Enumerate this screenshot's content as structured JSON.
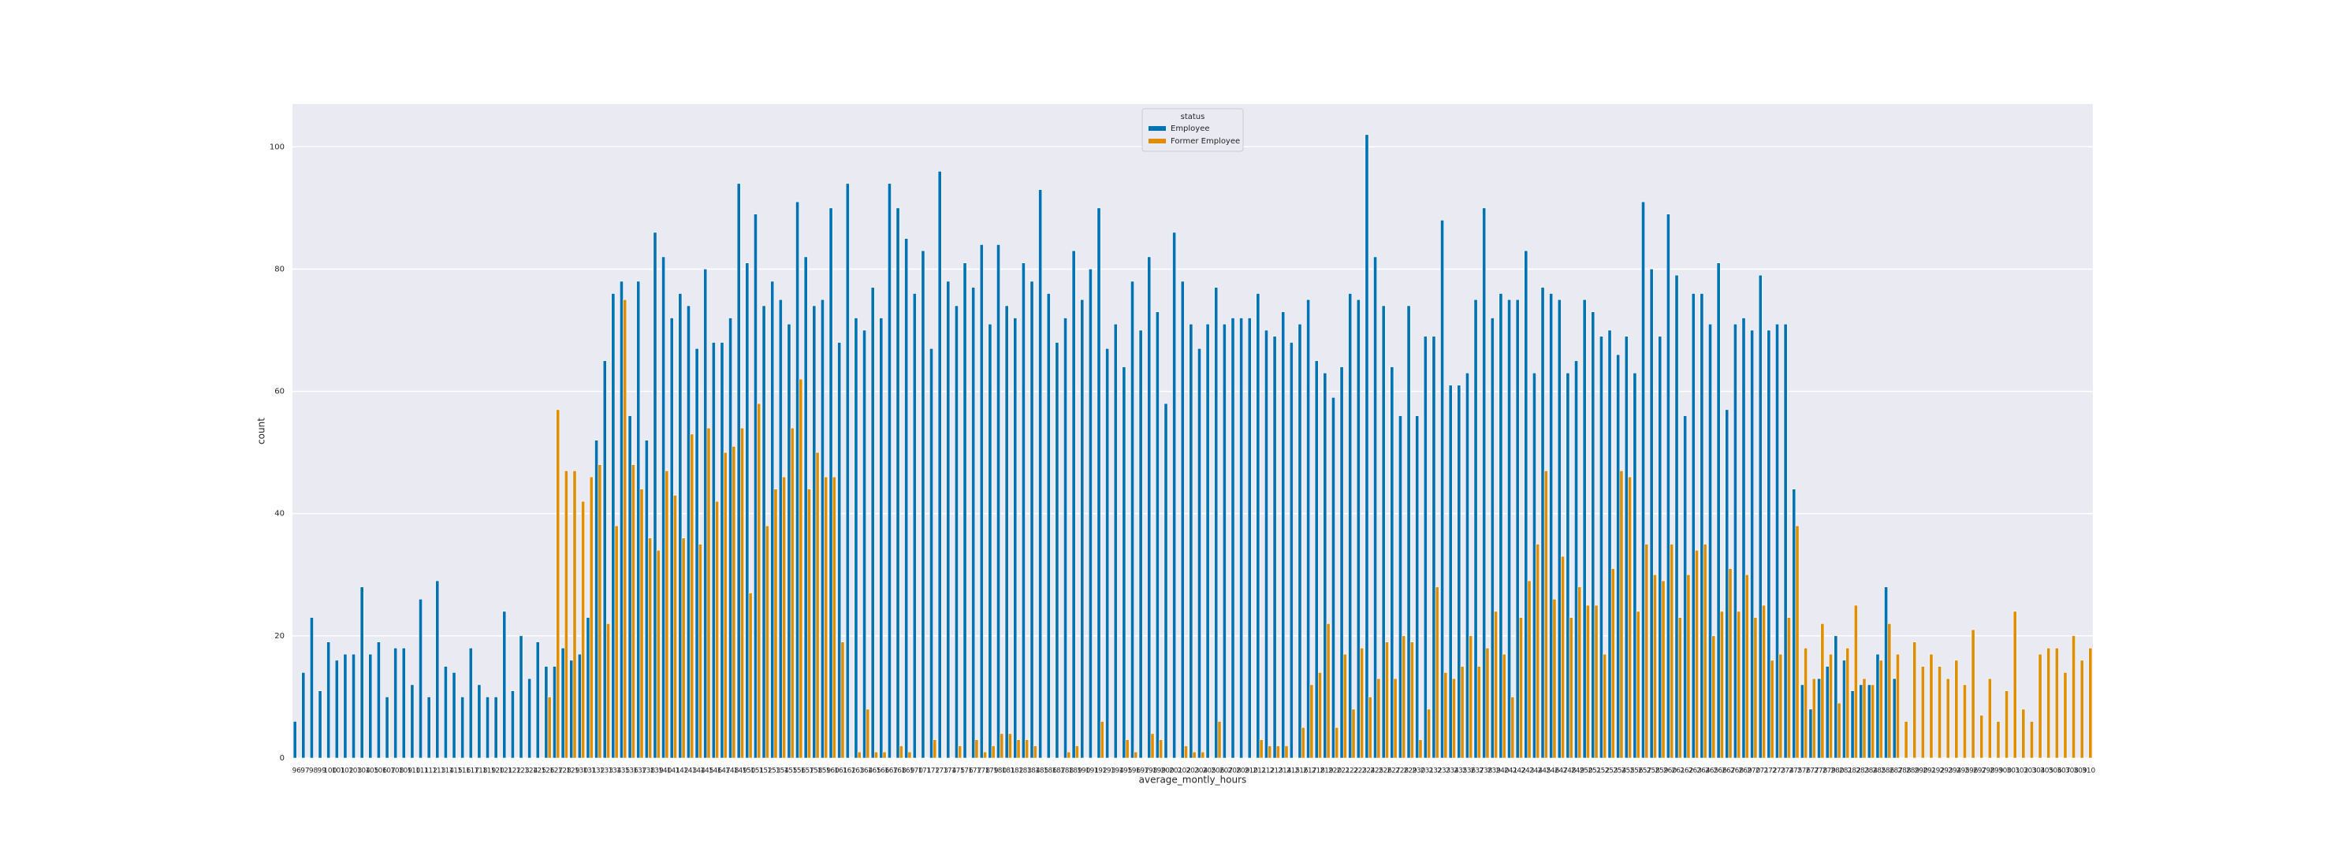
{
  "chart_data": {
    "type": "bar",
    "xlabel": "average_montly_hours",
    "ylabel": "count",
    "legend_title": "status",
    "legend_position": "upper center",
    "grid": true,
    "ylim": [
      0,
      107
    ],
    "yticks": [
      0,
      20,
      40,
      60,
      80,
      100
    ],
    "categories": [
      96,
      97,
      98,
      99,
      100,
      101,
      102,
      103,
      104,
      105,
      106,
      107,
      108,
      109,
      110,
      111,
      112,
      113,
      114,
      115,
      116,
      117,
      118,
      119,
      120,
      121,
      122,
      123,
      124,
      125,
      126,
      127,
      128,
      129,
      130,
      131,
      132,
      133,
      134,
      135,
      136,
      137,
      138,
      139,
      140,
      141,
      142,
      143,
      144,
      145,
      146,
      147,
      148,
      149,
      150,
      151,
      152,
      153,
      154,
      155,
      156,
      157,
      158,
      159,
      160,
      161,
      162,
      163,
      164,
      165,
      166,
      167,
      168,
      169,
      170,
      171,
      172,
      173,
      174,
      175,
      176,
      177,
      178,
      179,
      180,
      181,
      182,
      183,
      184,
      185,
      186,
      187,
      188,
      189,
      190,
      191,
      192,
      193,
      194,
      195,
      196,
      197,
      198,
      199,
      200,
      201,
      202,
      203,
      204,
      205,
      206,
      207,
      208,
      209,
      210,
      211,
      212,
      213,
      214,
      215,
      216,
      217,
      218,
      219,
      220,
      221,
      222,
      223,
      224,
      225,
      226,
      227,
      228,
      229,
      230,
      231,
      232,
      233,
      234,
      235,
      236,
      237,
      238,
      239,
      240,
      241,
      242,
      243,
      244,
      245,
      246,
      247,
      248,
      249,
      250,
      251,
      252,
      253,
      254,
      255,
      256,
      257,
      258,
      259,
      260,
      261,
      262,
      263,
      264,
      265,
      266,
      267,
      268,
      269,
      270,
      271,
      272,
      273,
      274,
      275,
      276,
      277,
      278,
      279,
      280,
      281,
      282,
      283,
      284,
      285,
      286,
      287,
      288,
      289,
      290,
      291,
      292,
      293,
      294,
      295,
      296,
      297,
      298,
      299,
      300,
      301,
      302,
      303,
      304,
      305,
      306,
      307,
      308,
      309,
      310
    ],
    "series": [
      {
        "name": "Employee",
        "color": "#0173b2",
        "values": [
          6,
          14,
          23,
          11,
          19,
          16,
          17,
          17,
          28,
          17,
          19,
          10,
          18,
          18,
          12,
          26,
          10,
          29,
          15,
          14,
          10,
          18,
          12,
          10,
          10,
          24,
          11,
          20,
          13,
          19,
          15,
          15,
          18,
          16,
          17,
          23,
          52,
          65,
          76,
          78,
          56,
          78,
          52,
          86,
          82,
          72,
          76,
          74,
          67,
          80,
          68,
          68,
          72,
          94,
          81,
          89,
          74,
          78,
          75,
          71,
          91,
          82,
          74,
          75,
          90,
          68,
          94,
          72,
          70,
          77,
          72,
          94,
          90,
          85,
          76,
          83,
          67,
          96,
          78,
          74,
          81,
          77,
          84,
          71,
          84,
          74,
          72,
          81,
          78,
          93,
          76,
          68,
          72,
          83,
          75,
          80,
          90,
          67,
          71,
          64,
          78,
          70,
          82,
          73,
          58,
          86,
          78,
          71,
          67,
          71,
          77,
          71,
          72,
          72,
          72,
          76,
          70,
          69,
          73,
          68,
          71,
          75,
          65,
          63,
          59,
          64,
          76,
          75,
          102,
          82,
          74,
          64,
          56,
          74,
          56,
          69,
          69,
          88,
          61,
          61,
          63,
          75,
          90,
          72,
          76,
          75,
          75,
          83,
          63,
          77,
          76,
          75,
          63,
          65,
          75,
          73,
          69,
          70,
          66,
          69,
          63,
          91,
          80,
          69,
          89,
          79,
          56,
          76,
          76,
          71,
          81,
          57,
          71,
          72,
          70,
          79,
          70,
          71,
          71,
          44,
          12,
          8,
          13,
          15,
          20,
          16,
          11,
          12,
          12,
          17,
          28,
          13,
          0,
          0,
          0,
          0,
          0,
          0,
          0,
          0,
          0,
          0,
          0,
          0,
          0,
          0,
          0,
          0,
          0,
          0,
          0,
          0,
          0,
          0,
          0
        ]
      },
      {
        "name": "Former Employee",
        "color": "#de8f05",
        "values": [
          0,
          0,
          0,
          0,
          0,
          0,
          0,
          0,
          0,
          0,
          0,
          0,
          0,
          0,
          0,
          0,
          0,
          0,
          0,
          0,
          0,
          0,
          0,
          0,
          0,
          0,
          0,
          0,
          0,
          0,
          10,
          57,
          47,
          47,
          42,
          46,
          48,
          22,
          38,
          75,
          48,
          44,
          36,
          34,
          47,
          43,
          36,
          53,
          35,
          54,
          42,
          50,
          51,
          54,
          27,
          58,
          38,
          44,
          46,
          54,
          62,
          44,
          50,
          46,
          46,
          19,
          0,
          1,
          8,
          1,
          1,
          0,
          2,
          1,
          0,
          0,
          3,
          0,
          0,
          2,
          0,
          3,
          1,
          2,
          4,
          4,
          3,
          3,
          2,
          0,
          0,
          0,
          1,
          2,
          0,
          0,
          6,
          0,
          0,
          3,
          1,
          0,
          4,
          3,
          0,
          0,
          2,
          1,
          1,
          0,
          6,
          0,
          0,
          0,
          0,
          3,
          2,
          2,
          2,
          0,
          5,
          12,
          14,
          22,
          5,
          17,
          8,
          18,
          10,
          13,
          19,
          13,
          20,
          19,
          3,
          8,
          28,
          14,
          13,
          15,
          20,
          15,
          18,
          24,
          17,
          10,
          23,
          29,
          35,
          47,
          26,
          33,
          23,
          28,
          25,
          25,
          17,
          31,
          47,
          46,
          24,
          35,
          30,
          29,
          35,
          23,
          30,
          34,
          35,
          20,
          24,
          31,
          24,
          30,
          23,
          25,
          16,
          17,
          23,
          38,
          18,
          13,
          22,
          17,
          9,
          18,
          25,
          13,
          12,
          16,
          22,
          17,
          6,
          19,
          15,
          17,
          15,
          13,
          16,
          12,
          21,
          7,
          13,
          6,
          11,
          24,
          8,
          6,
          17,
          18,
          18,
          14,
          20,
          16,
          18
        ]
      }
    ]
  }
}
